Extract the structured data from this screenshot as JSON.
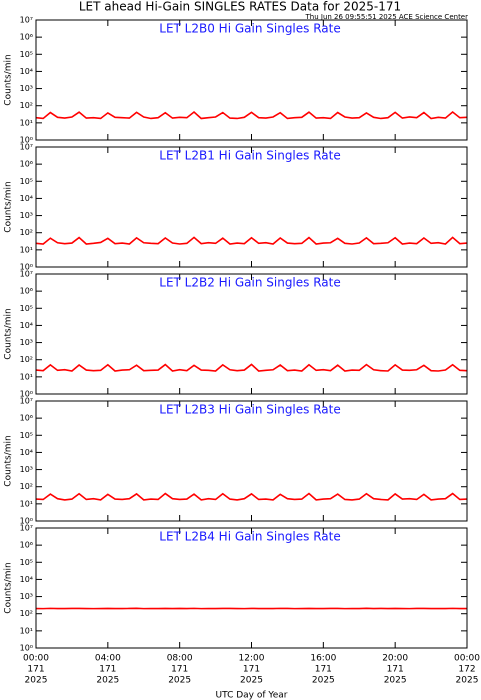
{
  "title": "LET ahead Hi-Gain SINGLES RATES Data for 2025-171",
  "subtitle": "Thu Jun 26 09:55:51 2025 ACE Science Center",
  "chart_data": [
    {
      "type": "line",
      "title": "LET L2B0 Hi Gain Singles Rate",
      "ylabel": "Counts/min",
      "log_y": true,
      "color": "#ff0000",
      "x": [
        0,
        0.4,
        0.8,
        1.2,
        1.6,
        2,
        2.4,
        2.8,
        3.2,
        3.6,
        4,
        4.4,
        4.8,
        5.2,
        5.6,
        6,
        6.4,
        6.8,
        7.2,
        7.6,
        8,
        8.4,
        8.8,
        9.2,
        9.6,
        10,
        10.4,
        10.8,
        11.2,
        11.6,
        12,
        12.4,
        12.8,
        13.2,
        13.6,
        14,
        14.4,
        14.8,
        15.2,
        15.6,
        16,
        16.4,
        16.8,
        17.2,
        17.6,
        18,
        18.4,
        18.8,
        19.2,
        19.6,
        20,
        20.4,
        20.8,
        21.2,
        21.6,
        22,
        22.4,
        22.8,
        23.2,
        23.6,
        24
      ],
      "values": [
        20,
        18,
        40,
        21,
        19,
        22,
        42,
        19,
        20,
        18,
        38,
        21,
        20,
        19,
        41,
        22,
        18,
        20,
        39,
        19,
        21,
        20,
        43,
        18,
        20,
        22,
        40,
        19,
        18,
        21,
        41,
        20,
        19,
        22,
        39,
        18,
        20,
        21,
        42,
        19,
        20,
        18,
        40,
        22,
        19,
        20,
        38,
        21,
        18,
        20,
        41,
        19,
        22,
        20,
        40,
        18,
        21,
        19,
        43,
        20,
        21
      ],
      "xlim": [
        0,
        24
      ],
      "xticks": [
        0,
        4,
        8,
        12,
        16,
        20,
        24
      ],
      "ylim": [
        1,
        10000000
      ],
      "yticks": [
        {
          "value": 1,
          "label": "10⁰"
        },
        {
          "value": 10,
          "label": "10¹"
        },
        {
          "value": 100,
          "label": "10²"
        },
        {
          "value": 1000,
          "label": "10³"
        },
        {
          "value": 10000,
          "label": "10⁴"
        },
        {
          "value": 100000,
          "label": "10⁵"
        },
        {
          "value": 1000000,
          "label": "10⁶"
        },
        {
          "value": 10000000,
          "label": "10⁷"
        }
      ]
    },
    {
      "type": "line",
      "title": "LET L2B1 Hi Gain Singles Rate",
      "ylabel": "Counts/min",
      "log_y": true,
      "color": "#ff0000",
      "x": [
        0,
        0.4,
        0.8,
        1.2,
        1.6,
        2,
        2.4,
        2.8,
        3.2,
        3.6,
        4,
        4.4,
        4.8,
        5.2,
        5.6,
        6,
        6.4,
        6.8,
        7.2,
        7.6,
        8,
        8.4,
        8.8,
        9.2,
        9.6,
        10,
        10.4,
        10.8,
        11.2,
        11.6,
        12,
        12.4,
        12.8,
        13.2,
        13.6,
        14,
        14.4,
        14.8,
        15.2,
        15.6,
        16,
        16.4,
        16.8,
        17.2,
        17.6,
        18,
        18.4,
        18.8,
        19.2,
        19.6,
        20,
        20.4,
        20.8,
        21.2,
        21.6,
        22,
        22.4,
        22.8,
        23.2,
        23.6,
        24
      ],
      "values": [
        24,
        22,
        48,
        26,
        23,
        25,
        52,
        22,
        24,
        27,
        47,
        23,
        25,
        22,
        50,
        26,
        24,
        23,
        49,
        25,
        22,
        24,
        53,
        23,
        26,
        24,
        48,
        22,
        25,
        23,
        51,
        24,
        26,
        22,
        49,
        25,
        23,
        24,
        52,
        22,
        25,
        26,
        47,
        24,
        22,
        25,
        50,
        23,
        24,
        26,
        51,
        22,
        25,
        23,
        49,
        24,
        26,
        22,
        53,
        23,
        25
      ],
      "xlim": [
        0,
        24
      ],
      "xticks": [
        0,
        4,
        8,
        12,
        16,
        20,
        24
      ],
      "ylim": [
        1,
        10000000
      ],
      "yticks": [
        {
          "value": 1,
          "label": "10⁰"
        },
        {
          "value": 10,
          "label": "10¹"
        },
        {
          "value": 100,
          "label": "10²"
        },
        {
          "value": 1000,
          "label": "10³"
        },
        {
          "value": 10000,
          "label": "10⁴"
        },
        {
          "value": 100000,
          "label": "10⁵"
        },
        {
          "value": 1000000,
          "label": "10⁶"
        },
        {
          "value": 10000000,
          "label": "10⁷"
        }
      ]
    },
    {
      "type": "line",
      "title": "LET L2B2 Hi Gain Singles Rate",
      "ylabel": "Counts/min",
      "log_y": true,
      "color": "#ff0000",
      "x": [
        0,
        0.4,
        0.8,
        1.2,
        1.6,
        2,
        2.4,
        2.8,
        3.2,
        3.6,
        4,
        4.4,
        4.8,
        5.2,
        5.6,
        6,
        6.4,
        6.8,
        7.2,
        7.6,
        8,
        8.4,
        8.8,
        9.2,
        9.6,
        10,
        10.4,
        10.8,
        11.2,
        11.6,
        12,
        12.4,
        12.8,
        13.2,
        13.6,
        14,
        14.4,
        14.8,
        15.2,
        15.6,
        16,
        16.4,
        16.8,
        17.2,
        17.6,
        18,
        18.4,
        18.8,
        19.2,
        19.6,
        20,
        20.4,
        20.8,
        21.2,
        21.6,
        22,
        22.4,
        22.8,
        23.2,
        23.6,
        24
      ],
      "values": [
        25,
        23,
        50,
        24,
        26,
        22,
        49,
        25,
        23,
        24,
        51,
        22,
        25,
        26,
        48,
        23,
        24,
        25,
        52,
        22,
        26,
        23,
        47,
        25,
        24,
        22,
        50,
        26,
        23,
        25,
        53,
        22,
        24,
        26,
        49,
        23,
        25,
        22,
        51,
        24,
        26,
        23,
        48,
        22,
        25,
        24,
        52,
        26,
        23,
        22,
        50,
        25,
        24,
        26,
        47,
        23,
        22,
        25,
        51,
        24,
        23
      ],
      "xlim": [
        0,
        24
      ],
      "xticks": [
        0,
        4,
        8,
        12,
        16,
        20,
        24
      ],
      "ylim": [
        1,
        10000000
      ],
      "yticks": [
        {
          "value": 1,
          "label": "10⁰"
        },
        {
          "value": 10,
          "label": "10¹"
        },
        {
          "value": 100,
          "label": "10²"
        },
        {
          "value": 1000,
          "label": "10³"
        },
        {
          "value": 10000,
          "label": "10⁴"
        },
        {
          "value": 100000,
          "label": "10⁵"
        },
        {
          "value": 1000000,
          "label": "10⁶"
        },
        {
          "value": 10000000,
          "label": "10⁷"
        }
      ]
    },
    {
      "type": "line",
      "title": "LET L2B3 Hi Gain Singles Rate",
      "ylabel": "Counts/min",
      "log_y": true,
      "color": "#ff0000",
      "x": [
        0,
        0.4,
        0.8,
        1.2,
        1.6,
        2,
        2.4,
        2.8,
        3.2,
        3.6,
        4,
        4.4,
        4.8,
        5.2,
        5.6,
        6,
        6.4,
        6.8,
        7.2,
        7.6,
        8,
        8.4,
        8.8,
        9.2,
        9.6,
        10,
        10.4,
        10.8,
        11.2,
        11.6,
        12,
        12.4,
        12.8,
        13.2,
        13.6,
        14,
        14.4,
        14.8,
        15.2,
        15.6,
        16,
        16.4,
        16.8,
        17.2,
        17.6,
        18,
        18.4,
        18.8,
        19.2,
        19.6,
        20,
        20.4,
        20.8,
        21.2,
        21.6,
        22,
        22.4,
        22.8,
        23.2,
        23.6,
        24
      ],
      "values": [
        19,
        18,
        37,
        20,
        17,
        19,
        39,
        18,
        20,
        17,
        36,
        19,
        18,
        20,
        38,
        17,
        19,
        18,
        40,
        20,
        18,
        19,
        37,
        17,
        20,
        18,
        39,
        19,
        17,
        20,
        38,
        18,
        19,
        17,
        36,
        20,
        18,
        19,
        40,
        17,
        19,
        20,
        37,
        18,
        17,
        19,
        39,
        20,
        18,
        17,
        38,
        19,
        20,
        18,
        36,
        17,
        19,
        20,
        40,
        18,
        19
      ],
      "xlim": [
        0,
        24
      ],
      "xticks": [
        0,
        4,
        8,
        12,
        16,
        20,
        24
      ],
      "ylim": [
        1,
        10000000
      ],
      "yticks": [
        {
          "value": 1,
          "label": "10⁰"
        },
        {
          "value": 10,
          "label": "10¹"
        },
        {
          "value": 100,
          "label": "10²"
        },
        {
          "value": 1000,
          "label": "10³"
        },
        {
          "value": 10000,
          "label": "10⁴"
        },
        {
          "value": 100000,
          "label": "10⁵"
        },
        {
          "value": 1000000,
          "label": "10⁶"
        },
        {
          "value": 10000000,
          "label": "10⁷"
        }
      ]
    },
    {
      "type": "line",
      "title": "LET L2B4 Hi Gain Singles Rate",
      "ylabel": "Counts/min",
      "log_y": true,
      "color": "#ff0000",
      "xlabel": "UTC Day of Year",
      "x": [
        0,
        0.4,
        0.8,
        1.2,
        1.6,
        2,
        2.4,
        2.8,
        3.2,
        3.6,
        4,
        4.4,
        4.8,
        5.2,
        5.6,
        6,
        6.4,
        6.8,
        7.2,
        7.6,
        8,
        8.4,
        8.8,
        9.2,
        9.6,
        10,
        10.4,
        10.8,
        11.2,
        11.6,
        12,
        12.4,
        12.8,
        13.2,
        13.6,
        14,
        14.4,
        14.8,
        15.2,
        15.6,
        16,
        16.4,
        16.8,
        17.2,
        17.6,
        18,
        18.4,
        18.8,
        19.2,
        19.6,
        20,
        20.4,
        20.8,
        21.2,
        21.6,
        22,
        22.4,
        22.8,
        23.2,
        23.6,
        24
      ],
      "values": [
        200,
        198,
        205,
        201,
        199,
        202,
        204,
        200,
        198,
        201,
        203,
        199,
        200,
        202,
        206,
        198,
        201,
        200,
        203,
        199,
        202,
        200,
        205,
        198,
        201,
        199,
        204,
        202,
        200,
        198,
        203,
        201,
        199,
        200,
        205,
        202,
        198,
        201,
        204,
        199,
        200,
        202,
        203,
        198,
        201,
        200,
        206,
        199,
        202,
        201,
        204,
        200,
        198,
        202,
        203,
        199,
        201,
        200,
        205,
        201,
        200
      ],
      "xlim": [
        0,
        24
      ],
      "xticks": [
        {
          "value": 0,
          "label": "00:00",
          "day": "171",
          "year": "2025"
        },
        {
          "value": 4,
          "label": "04:00",
          "day": "171",
          "year": "2025"
        },
        {
          "value": 8,
          "label": "08:00",
          "day": "171",
          "year": "2025"
        },
        {
          "value": 12,
          "label": "12:00",
          "day": "171",
          "year": "2025"
        },
        {
          "value": 16,
          "label": "16:00",
          "day": "171",
          "year": "2025"
        },
        {
          "value": 20,
          "label": "20:00",
          "day": "171",
          "year": "2025"
        },
        {
          "value": 24,
          "label": "00:00",
          "day": "172",
          "year": "2025"
        }
      ],
      "ylim": [
        1,
        10000000
      ],
      "yticks": [
        {
          "value": 1,
          "label": "10⁰"
        },
        {
          "value": 10,
          "label": "10¹"
        },
        {
          "value": 100,
          "label": "10²"
        },
        {
          "value": 1000,
          "label": "10³"
        },
        {
          "value": 10000,
          "label": "10⁴"
        },
        {
          "value": 100000,
          "label": "10⁵"
        },
        {
          "value": 1000000,
          "label": "10⁶"
        },
        {
          "value": 10000000,
          "label": "10⁷"
        }
      ]
    }
  ]
}
